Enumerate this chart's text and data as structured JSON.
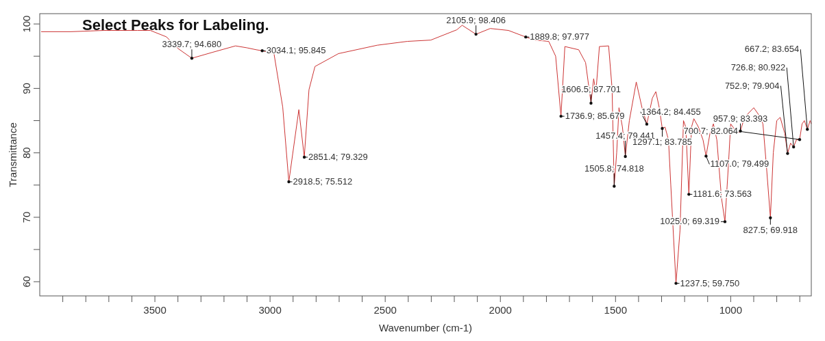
{
  "chart_data": {
    "type": "line",
    "title": "Select Peaks for Labeling.",
    "xlabel": "Wavenumber (cm-1)",
    "ylabel": "Transmittance",
    "xlim": [
      4000,
      650
    ],
    "ylim": [
      57.8,
      101.6
    ],
    "xticks": [
      {
        "value": 3900,
        "label": null
      },
      {
        "value": 3800,
        "label": null
      },
      {
        "value": 3700,
        "label": null
      },
      {
        "value": 3600,
        "label": null
      },
      3500,
      {
        "value": 3400,
        "label": null
      },
      {
        "value": 3300,
        "label": null
      },
      {
        "value": 3200,
        "label": null
      },
      {
        "value": 3100,
        "label": null
      },
      3000,
      {
        "value": 2900,
        "label": null
      },
      {
        "value": 2800,
        "label": null
      },
      {
        "value": 2700,
        "label": null
      },
      {
        "value": 2600,
        "label": null
      },
      2500,
      {
        "value": 2400,
        "label": null
      },
      {
        "value": 2300,
        "label": null
      },
      {
        "value": 2200,
        "label": null
      },
      {
        "value": 2100,
        "label": null
      },
      2000,
      {
        "value": 1900,
        "label": null
      },
      {
        "value": 1800,
        "label": null
      },
      {
        "value": 1700,
        "label": null
      },
      {
        "value": 1600,
        "label": null
      },
      1500,
      {
        "value": 1400,
        "label": null
      },
      {
        "value": 1300,
        "label": null
      },
      {
        "value": 1200,
        "label": null
      },
      {
        "value": 1100,
        "label": null
      },
      1000,
      {
        "value": 900,
        "label": null
      },
      {
        "value": 800,
        "label": null
      },
      {
        "value": 700,
        "label": null
      }
    ],
    "yticks": [
      60,
      {
        "value": 65,
        "label": null
      },
      70,
      {
        "value": 75,
        "label": null
      },
      80,
      {
        "value": 85,
        "label": null
      },
      90,
      {
        "value": 95,
        "label": null
      },
      100
    ],
    "grid": false,
    "marker": "none",
    "line_style": "solid",
    "series": [
      {
        "color": "#cc3333",
        "x": [
          3994,
          3866,
          3721,
          3576,
          3520,
          3450,
          3400,
          3339.7,
          3250,
          3150,
          3100,
          3060,
          3034.1,
          2983,
          2945,
          2918.5,
          2875,
          2851.4,
          2831,
          2805,
          2703,
          2535,
          2404,
          2302,
          2189,
          2166,
          2105.9,
          2044,
          1965,
          1889.8,
          1850,
          1790,
          1760,
          1736.9,
          1720,
          1660,
          1630,
          1606.5,
          1595,
          1585,
          1570,
          1530,
          1515,
          1505.8,
          1495,
          1485,
          1470,
          1457.4,
          1440,
          1410,
          1385,
          1364.2,
          1340,
          1325,
          1310,
          1297.1,
          1285,
          1270,
          1260,
          1237.5,
          1220,
          1205,
          1195,
          1181.6,
          1170,
          1160,
          1140,
          1120,
          1107.0,
          1090,
          1075,
          1060,
          1040,
          1025.0,
          1010,
          1000,
          990,
          970,
          957.9,
          940,
          900,
          880,
          860,
          845,
          827.5,
          815,
          800,
          785,
          765,
          752.9,
          740,
          726.8,
          715,
          700.7,
          690,
          680,
          667.2,
          655,
          650
        ],
        "values": [
          98.8,
          98.8,
          99.0,
          99.0,
          99.0,
          98.0,
          96.2,
          94.68,
          95.6,
          96.6,
          96.3,
          96.0,
          95.845,
          95.4,
          87.1,
          75.512,
          86.7,
          79.329,
          89.8,
          93.4,
          95.4,
          96.7,
          97.3,
          97.5,
          99.1,
          99.8,
          98.406,
          99.3,
          99.0,
          97.977,
          97.5,
          97.3,
          95,
          85.679,
          96.5,
          96.0,
          94,
          87.701,
          91.5,
          89.5,
          96.5,
          96.6,
          90,
          74.818,
          80,
          87,
          84,
          79.441,
          85,
          91.0,
          87,
          84.455,
          88.5,
          89.5,
          87,
          83.785,
          84,
          82,
          75,
          59.75,
          68,
          85,
          84,
          73.563,
          84,
          85.3,
          84,
          82,
          79.499,
          83,
          84.5,
          82,
          73,
          69.319,
          78,
          84.5,
          84,
          83,
          83.393,
          85.5,
          87.0,
          86,
          84.5,
          78,
          69.918,
          80,
          85,
          85.5,
          83,
          79.904,
          81.5,
          80.922,
          82,
          82.064,
          84.5,
          85,
          83.654,
          85,
          84.5
        ]
      }
    ],
    "annotations": [
      {
        "text": "3339.7; 94.680",
        "x": 3339.7,
        "y": 94.68
      },
      {
        "text": "3034.1; 95.845",
        "x": 3034.1,
        "y": 95.845
      },
      {
        "text": "2918.5; 75.512",
        "x": 2918.5,
        "y": 75.512
      },
      {
        "text": "2851.4; 79.329",
        "x": 2851.4,
        "y": 79.329
      },
      {
        "text": "2105.9; 98.406",
        "x": 2105.9,
        "y": 98.406
      },
      {
        "text": "1889.8; 97.977",
        "x": 1889.8,
        "y": 97.977
      },
      {
        "text": "1736.9; 85.679",
        "x": 1736.9,
        "y": 85.679
      },
      {
        "text": "1606.5; 87.701",
        "x": 1606.5,
        "y": 87.701
      },
      {
        "text": "1505.8; 74.818",
        "x": 1505.8,
        "y": 74.818
      },
      {
        "text": "1457.4; 79.441",
        "x": 1457.4,
        "y": 79.441
      },
      {
        "text": "1364.2; 84.455",
        "x": 1364.2,
        "y": 84.455
      },
      {
        "text": "1297.1; 83.785",
        "x": 1297.1,
        "y": 83.785
      },
      {
        "text": "700.7; 82.064",
        "x": 700.7,
        "y": 82.064
      },
      {
        "text": "1237.5; 59.750",
        "x": 1237.5,
        "y": 59.75
      },
      {
        "text": "1181.6; 73.563",
        "x": 1181.6,
        "y": 73.563
      },
      {
        "text": "1107.0; 79.499",
        "x": 1107.0,
        "y": 79.499
      },
      {
        "text": "1025.0; 69.319",
        "x": 1025.0,
        "y": 69.319
      },
      {
        "text": "957.9; 83.393",
        "x": 957.9,
        "y": 83.393
      },
      {
        "text": "827.5; 69.918",
        "x": 827.5,
        "y": 69.918
      },
      {
        "text": "752.9; 79.904",
        "x": 752.9,
        "y": 79.904
      },
      {
        "text": "726.8; 80.922",
        "x": 726.8,
        "y": 80.922
      },
      {
        "text": "667.2; 83.654",
        "x": 667.2,
        "y": 83.654
      }
    ]
  }
}
